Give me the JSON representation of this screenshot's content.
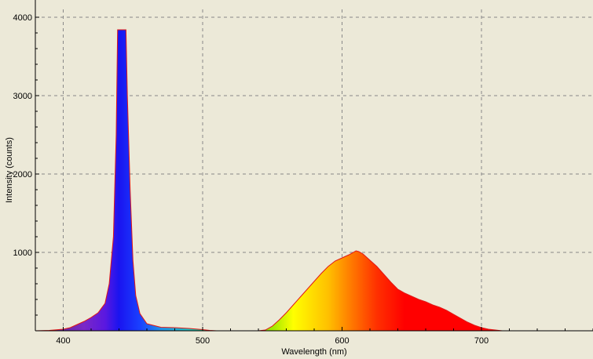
{
  "chart_data": {
    "type": "area",
    "title": "",
    "xlabel": "Wavelength (nm)",
    "ylabel": "Intensity (counts)",
    "xlim": [
      380,
      780
    ],
    "ylim": [
      0,
      4100
    ],
    "x_ticks": [
      "400",
      "500",
      "600",
      "700"
    ],
    "x_tick_values": [
      400,
      500,
      600,
      700
    ],
    "y_ticks": [
      "1000",
      "2000",
      "3000",
      "4000"
    ],
    "y_tick_values": [
      1000,
      2000,
      3000,
      4000
    ],
    "grid": true,
    "fill": "visible-spectrum gradient under curve",
    "line_color": "#e01818",
    "series": [
      {
        "x": [
          380,
          390,
          400,
          405,
          410,
          415,
          420,
          425,
          430,
          433,
          436,
          438,
          439,
          440,
          445,
          446,
          448,
          450,
          452,
          455,
          460,
          470,
          480,
          490,
          500,
          505,
          510,
          520,
          530,
          540,
          545,
          550,
          555,
          560,
          565,
          570,
          575,
          580,
          585,
          590,
          595,
          600,
          605,
          610,
          612,
          615,
          620,
          625,
          630,
          635,
          640,
          645,
          650,
          655,
          660,
          665,
          670,
          675,
          680,
          685,
          690,
          695,
          700,
          705,
          710,
          715,
          720,
          740,
          760,
          780
        ],
        "y": [
          0,
          5,
          20,
          40,
          80,
          120,
          170,
          230,
          350,
          600,
          1200,
          2500,
          3840,
          3840,
          3840,
          3000,
          1800,
          900,
          450,
          220,
          90,
          45,
          40,
          30,
          15,
          5,
          0,
          0,
          0,
          0,
          10,
          60,
          140,
          230,
          330,
          430,
          530,
          630,
          730,
          820,
          890,
          930,
          970,
          1020,
          1010,
          980,
          900,
          820,
          720,
          620,
          530,
          480,
          440,
          400,
          370,
          330,
          300,
          260,
          210,
          160,
          110,
          70,
          40,
          20,
          10,
          0,
          0,
          0,
          0,
          0
        ]
      }
    ]
  }
}
